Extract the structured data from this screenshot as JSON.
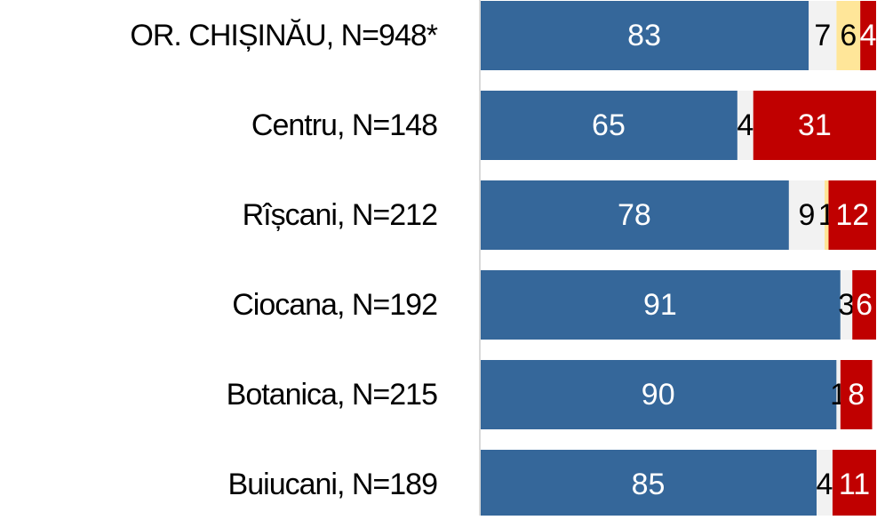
{
  "chart_data": {
    "type": "stacked-bar-horizontal",
    "categories": [
      "OR. CHIȘINĂU, N=948*",
      "Centru, N=148",
      "Rîșcani, N=212",
      "Ciocana, N=192",
      "Botanica, N=215",
      "Buiucani, N=189"
    ],
    "series": [
      {
        "color": "#35679a",
        "values": [
          83,
          65,
          78,
          91,
          90,
          85
        ]
      },
      {
        "color": "#f2f2f2",
        "values": [
          7,
          4,
          9,
          3,
          1,
          4
        ]
      },
      {
        "color": "#ffe699",
        "values": [
          6,
          null,
          1,
          null,
          null,
          null
        ]
      },
      {
        "color": "#c00000",
        "values": [
          4,
          31,
          12,
          6,
          8,
          11
        ]
      }
    ],
    "xlim": [
      0,
      100
    ]
  }
}
